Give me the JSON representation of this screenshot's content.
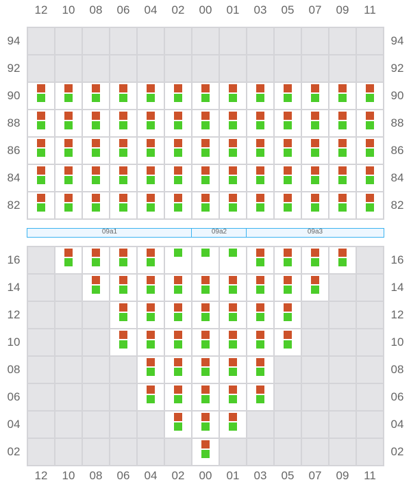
{
  "columns": [
    "12",
    "10",
    "08",
    "06",
    "04",
    "02",
    "00",
    "01",
    "03",
    "05",
    "07",
    "09",
    "11"
  ],
  "colors": {
    "orange": "#cd522a",
    "green": "#4ccd2a",
    "empty": "#e4e4e7",
    "bar_border": "#3bb3f0"
  },
  "legend_note": "cell codes: x = empty, b = orange+green, g = green only",
  "top_section": {
    "rows": [
      {
        "label": "94",
        "cells": "xxxxxxxxxxxxx"
      },
      {
        "label": "92",
        "cells": "xxxxxxxxxxxxx"
      },
      {
        "label": "90",
        "cells": "bbbbbbbbbbbbb"
      },
      {
        "label": "88",
        "cells": "bbbbbbbbbbbbb"
      },
      {
        "label": "86",
        "cells": "bbbbbbbbbbbbb"
      },
      {
        "label": "84",
        "cells": "bbbbbbbbbbbbb"
      },
      {
        "label": "82",
        "cells": "bbbbbbbbbbbbb"
      }
    ]
  },
  "groups": [
    {
      "label": "09a1",
      "from": "12",
      "to": "02"
    },
    {
      "label": "09a2",
      "from": "00",
      "to": "01"
    },
    {
      "label": "09a3",
      "from": "03",
      "to": "11"
    }
  ],
  "bottom_section": {
    "rows": [
      {
        "label": "16",
        "cells": "xbbbbgggbbbbx"
      },
      {
        "label": "14",
        "cells": "xxbbbbbbbbbxx"
      },
      {
        "label": "12",
        "cells": "xxxbbbbbbbxxx"
      },
      {
        "label": "10",
        "cells": "xxxbbbbbbbxxx"
      },
      {
        "label": "08",
        "cells": "xxxxbbbbbxxxx"
      },
      {
        "label": "06",
        "cells": "xxxxbbbbbxxxx"
      },
      {
        "label": "04",
        "cells": "xxxxxbbbxxxxx"
      },
      {
        "label": "02",
        "cells": "xxxxxxbxxxxxx"
      }
    ]
  }
}
